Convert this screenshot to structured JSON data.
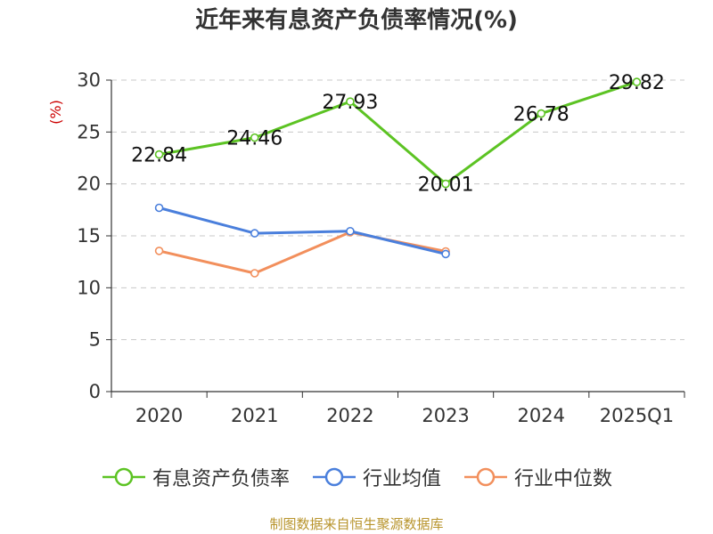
{
  "chart_data": {
    "type": "line",
    "title": "近年来有息资产负债率情况(%)",
    "ylabel": "(%)",
    "categories": [
      "2020",
      "2021",
      "2022",
      "2023",
      "2024",
      "2025Q1"
    ],
    "ylim": [
      0,
      30
    ],
    "yticks": [
      "0",
      "5",
      "10",
      "15",
      "20",
      "25",
      "30"
    ],
    "grid": true,
    "legend_position": "bottom",
    "series": [
      {
        "name": "有息资产负债率",
        "color": "#5cc323",
        "values": [
          22.84,
          24.46,
          27.93,
          20.01,
          26.78,
          29.82
        ],
        "labels": [
          "22.84",
          "24.46",
          "27.93",
          "20.01",
          "26.78",
          "29.82"
        ]
      },
      {
        "name": "行业均值",
        "color": "#4a7fdc",
        "values": [
          17.7,
          15.25,
          15.45,
          13.25,
          null,
          null
        ]
      },
      {
        "name": "行业中位数",
        "color": "#f28f5c",
        "values": [
          13.55,
          11.4,
          15.35,
          13.5,
          null,
          null
        ]
      }
    ],
    "source": "制图数据来自恒生聚源数据库"
  }
}
